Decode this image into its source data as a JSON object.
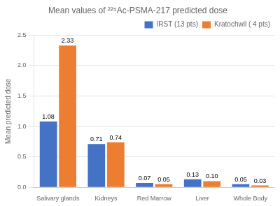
{
  "chart_data": {
    "type": "bar",
    "title": "Mean values of ²²⁵Ac-PSMA-217 predicted dose",
    "ylabel": "Mean predicted dose",
    "categories": [
      "Salivary glands",
      "Kidneys",
      "Red Marrow",
      "Liver",
      "Whole Body"
    ],
    "series": [
      {
        "name": "IRST (13 pts)",
        "color": "#4472C4",
        "values": [
          1.08,
          0.71,
          0.07,
          0.13,
          0.05
        ],
        "value_labels": [
          "1.08",
          "0.71",
          "0.07",
          "0.13",
          "0.05"
        ]
      },
      {
        "name": "Kratochwil ( 4 pts)",
        "color": "#ED7D31",
        "values": [
          2.33,
          0.74,
          0.05,
          0.1,
          0.03
        ],
        "value_labels": [
          "2.33",
          "0.74",
          "0.05",
          "0.10",
          "0.03"
        ]
      }
    ],
    "ylim": [
      0,
      2.5
    ],
    "yticks": [
      {
        "value": 0,
        "label": "0.0"
      },
      0.5,
      {
        "value": 1,
        "label": "1.0"
      },
      1.5,
      {
        "value": 2,
        "label": "2.0"
      },
      2.5
    ],
    "grid": "y",
    "legend": "upper right",
    "data_labels": true
  }
}
